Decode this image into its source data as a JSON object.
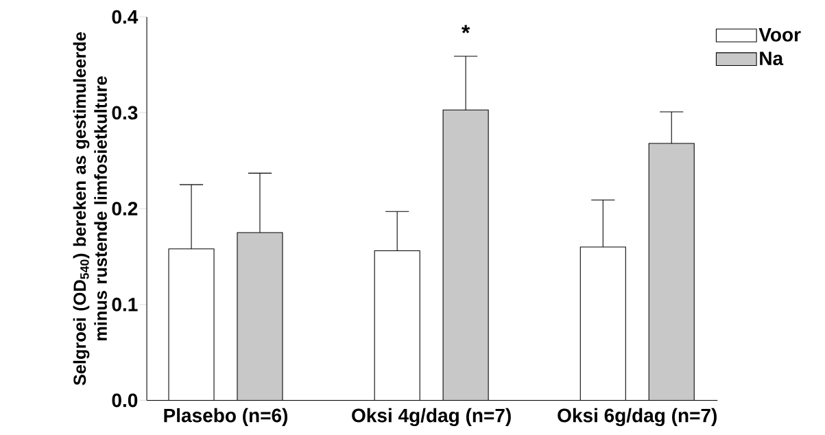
{
  "chart_data": {
    "type": "bar",
    "ylabel": "Selgroei (OD$_{540}$) bereken as gestimuleerde minus rustende limfosietkulture",
    "categories": [
      "Plasebo (n=6)",
      "Oksi 4g/dag (n=7)",
      "Oksi 6g/dag (n=7)"
    ],
    "series": [
      {
        "name": "Voor",
        "color": "#ffffff",
        "values": [
          0.158,
          0.156,
          0.16
        ],
        "errors": [
          [
            0.158,
            0.225
          ],
          [
            0.156,
            0.197
          ],
          [
            0.16,
            0.209
          ]
        ]
      },
      {
        "name": "Na",
        "color": "#c8c8c8",
        "values": [
          0.175,
          0.303,
          0.268
        ],
        "errors": [
          [
            0.175,
            0.237
          ],
          [
            0.303,
            0.359
          ],
          [
            0.268,
            0.301
          ]
        ]
      }
    ],
    "ylim": [
      0,
      0.4
    ],
    "yticks": [
      {
        "value": 0,
        "label": "0.0"
      },
      {
        "value": 0.1,
        "label": "0.1"
      },
      {
        "value": 0.2,
        "label": "0.2"
      },
      {
        "value": 0.3,
        "label": "0.3"
      },
      {
        "value": 0.4,
        "label": "0.4"
      }
    ],
    "legend": "top right",
    "annotations": [
      "*"
    ]
  }
}
